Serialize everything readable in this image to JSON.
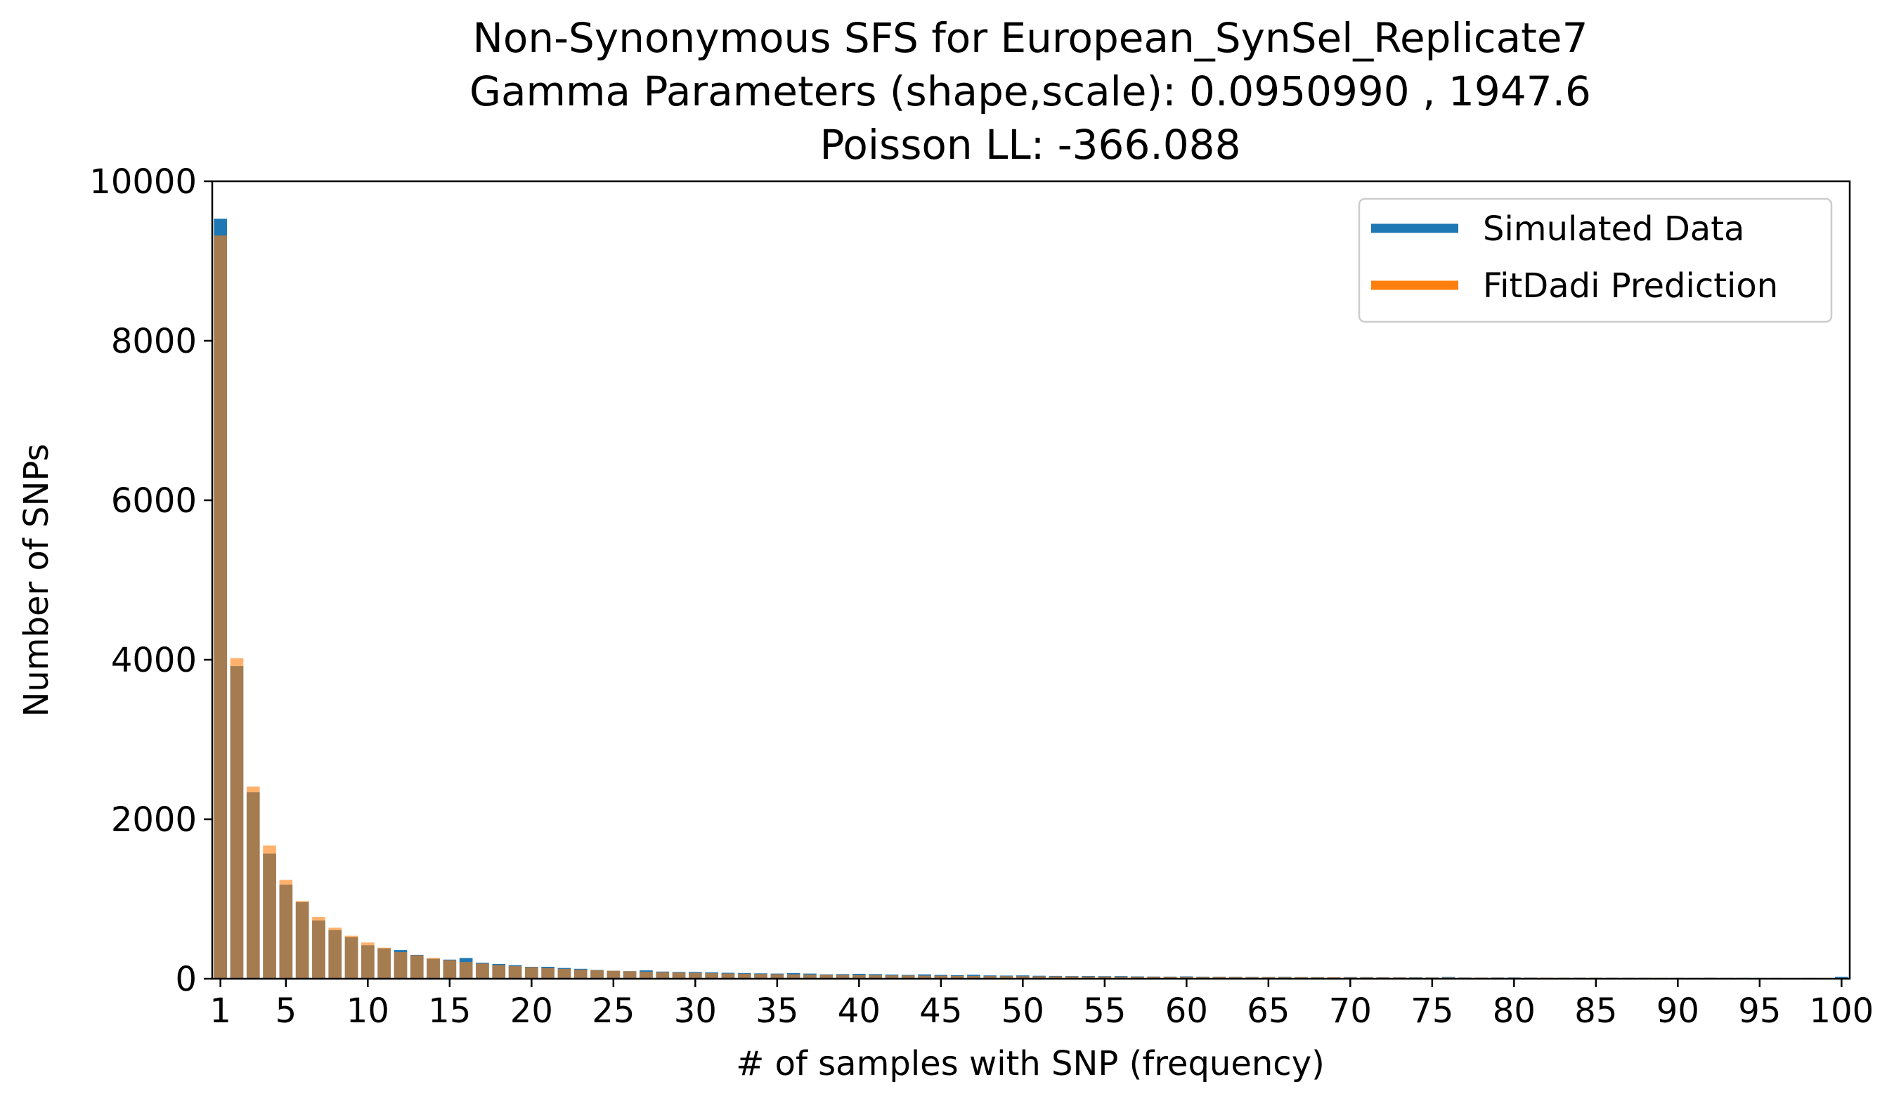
{
  "chart_data": {
    "type": "bar",
    "title_lines": [
      "Non-Synonymous SFS for European_SynSel_Replicate7",
      "Gamma Parameters (shape,scale): 0.0950990 , 1947.6",
      "Poisson LL: -366.088"
    ],
    "xlabel": "# of samples with SNP (frequency)",
    "ylabel": "Number of SNPs",
    "xlim": [
      0.5,
      100.5
    ],
    "ylim": [
      0,
      10000
    ],
    "xticks": [
      1,
      5,
      10,
      15,
      20,
      25,
      30,
      35,
      40,
      45,
      50,
      55,
      60,
      65,
      70,
      75,
      80,
      85,
      90,
      95,
      100
    ],
    "xtick_labels": [
      "1",
      "5",
      "10",
      "15",
      "20",
      "25",
      "30",
      "35",
      "40",
      "45",
      "50",
      "55",
      "60",
      "65",
      "70",
      "75",
      "80",
      "85",
      "90",
      "95",
      "100"
    ],
    "yticks": [
      0,
      2000,
      4000,
      6000,
      8000,
      10000
    ],
    "ytick_labels": [
      "0",
      "2000",
      "4000",
      "6000",
      "8000",
      "10000"
    ],
    "legend_position": "top-right",
    "grid": false,
    "x": [
      1,
      2,
      3,
      4,
      5,
      6,
      7,
      8,
      9,
      10,
      11,
      12,
      13,
      14,
      15,
      16,
      17,
      18,
      19,
      20,
      21,
      22,
      23,
      24,
      25,
      26,
      27,
      28,
      29,
      30,
      31,
      32,
      33,
      34,
      35,
      36,
      37,
      38,
      39,
      40,
      41,
      42,
      43,
      44,
      45,
      46,
      47,
      48,
      49,
      50,
      51,
      52,
      53,
      54,
      55,
      56,
      57,
      58,
      59,
      60,
      61,
      62,
      63,
      64,
      65,
      66,
      67,
      68,
      69,
      70,
      71,
      72,
      73,
      74,
      75,
      76,
      77,
      78,
      79,
      80,
      81,
      82,
      83,
      84,
      85,
      86,
      87,
      88,
      89,
      90,
      91,
      92,
      93,
      94,
      95,
      96,
      97,
      98,
      99,
      100
    ],
    "series": [
      {
        "name": "Simulated Data",
        "color": "#1f77b4",
        "opacity": 1.0,
        "values": [
          9530,
          3920,
          2340,
          1570,
          1180,
          960,
          730,
          610,
          520,
          420,
          380,
          360,
          300,
          250,
          240,
          260,
          200,
          185,
          170,
          150,
          150,
          135,
          125,
          110,
          100,
          95,
          105,
          90,
          85,
          85,
          80,
          75,
          72,
          68,
          65,
          72,
          65,
          55,
          58,
          62,
          58,
          52,
          48,
          55,
          48,
          45,
          50,
          42,
          40,
          42,
          38,
          36,
          34,
          35,
          33,
          34,
          30,
          28,
          27,
          30,
          26,
          25,
          24,
          23,
          22,
          24,
          21,
          20,
          19,
          21,
          20,
          18,
          17,
          18,
          16,
          22,
          15,
          14,
          15,
          16,
          14,
          13,
          12,
          13,
          12,
          12,
          11,
          11,
          10,
          11,
          10,
          12,
          10,
          11,
          10,
          10,
          9,
          10,
          9,
          24
        ]
      },
      {
        "name": "FitDadi Prediction",
        "color": "#ff7f0e",
        "opacity": 0.6,
        "values": [
          9320,
          4020,
          2410,
          1670,
          1240,
          975,
          775,
          640,
          540,
          455,
          390,
          335,
          295,
          262,
          233,
          210,
          190,
          172,
          158,
          145,
          134,
          124,
          115,
          107,
          100,
          94,
          88,
          83,
          78,
          74,
          70,
          66,
          63,
          60,
          57,
          55,
          52,
          50,
          48,
          46,
          44,
          42,
          41,
          39,
          38,
          36,
          35,
          34,
          33,
          32,
          31,
          30,
          29,
          28,
          27,
          26,
          25,
          25,
          24,
          23,
          22,
          22,
          21,
          20,
          20,
          19,
          19,
          18,
          18,
          17,
          17,
          16,
          16,
          15,
          15,
          15,
          14,
          14,
          14,
          13,
          13,
          13,
          12,
          12,
          12,
          11,
          11,
          11,
          11,
          10,
          10,
          10,
          10,
          9,
          9,
          9,
          9,
          9,
          8,
          8
        ]
      }
    ]
  }
}
